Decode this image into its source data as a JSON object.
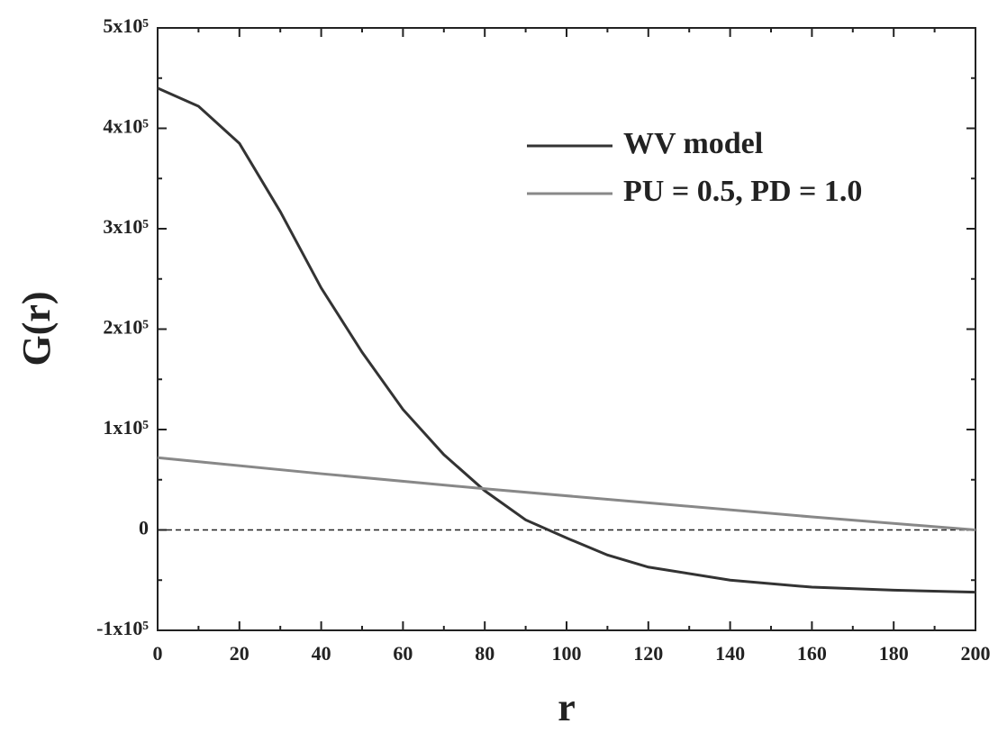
{
  "chart_data": {
    "type": "line",
    "xlabel": "r",
    "ylabel": "G(r)",
    "xlim": [
      0,
      200
    ],
    "ylim": [
      -100000,
      500000
    ],
    "xticks": [
      0,
      20,
      40,
      60,
      80,
      100,
      120,
      140,
      160,
      180,
      200
    ],
    "yticks": [
      {
        "value": -100000,
        "label": "-1x10⁵"
      },
      {
        "value": 0,
        "label": "0"
      },
      {
        "value": 100000,
        "label": "1x10⁵"
      },
      {
        "value": 200000,
        "label": "2x10⁵"
      },
      {
        "value": 300000,
        "label": "3x10⁵"
      },
      {
        "value": 400000,
        "label": "4x10⁵"
      },
      {
        "value": 500000,
        "label": "5x10⁵"
      }
    ],
    "zero_line": true,
    "series": [
      {
        "name": "WV model",
        "color": "#333333",
        "x": [
          0,
          10,
          20,
          30,
          40,
          50,
          60,
          70,
          80,
          90,
          100,
          110,
          120,
          140,
          160,
          180,
          200
        ],
        "values": [
          440000,
          422000,
          385000,
          317000,
          241000,
          177000,
          120000,
          75000,
          39000,
          10000,
          -8000,
          -25000,
          -37000,
          -50000,
          -57000,
          -60000,
          -62000
        ]
      },
      {
        "name": "PU = 0.5, PD = 1.0",
        "color": "#888888",
        "x": [
          0,
          40,
          80,
          120,
          160,
          200
        ],
        "values": [
          72000,
          56000,
          41000,
          27000,
          13000,
          0
        ]
      }
    ]
  }
}
